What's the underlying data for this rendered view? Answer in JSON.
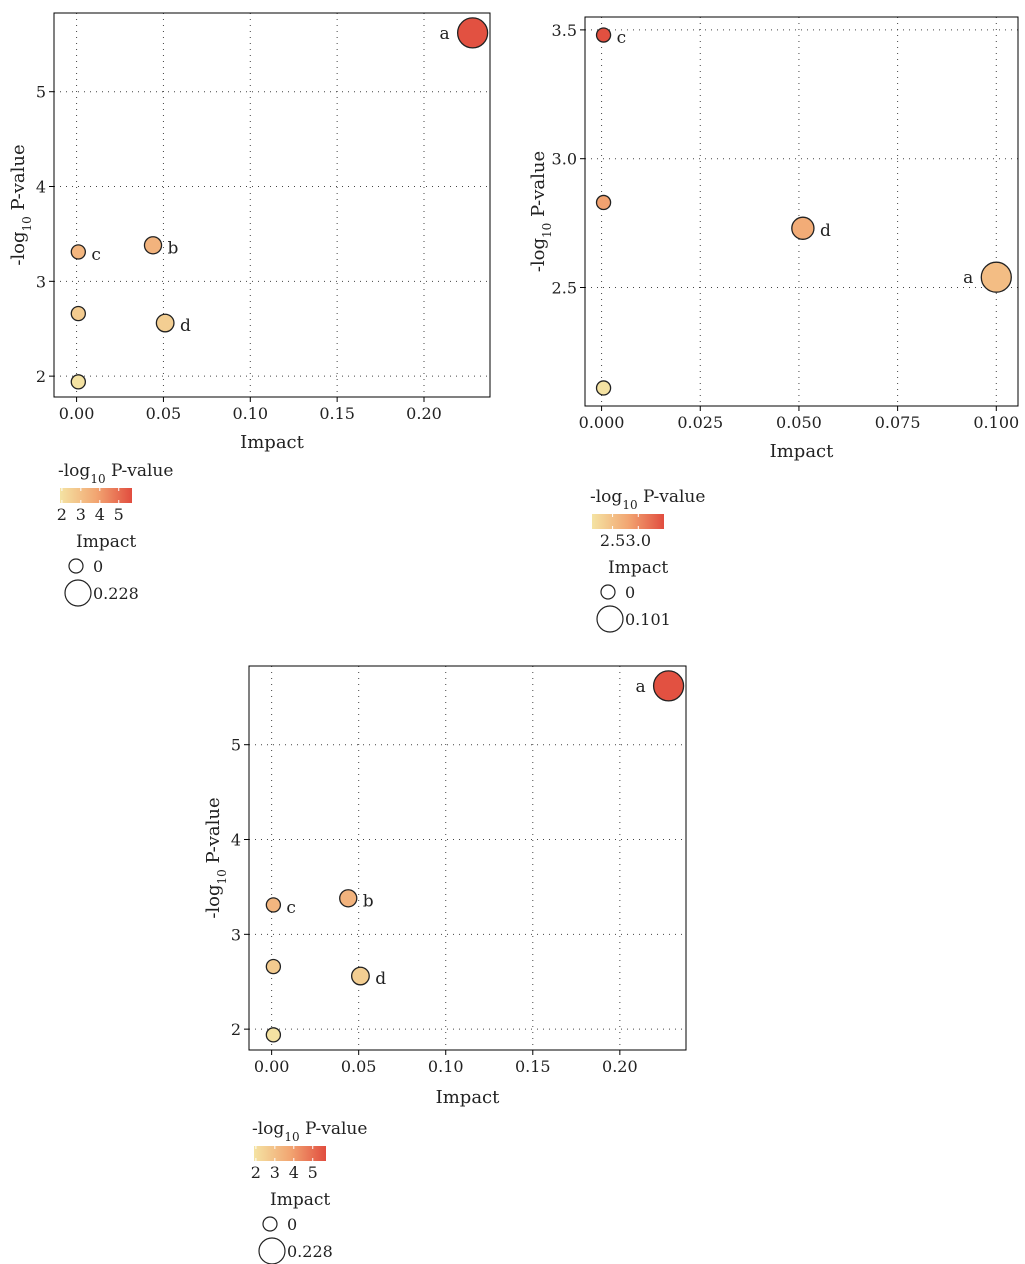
{
  "colors": {
    "low": "#f4e3a3",
    "mid": "#f2a672",
    "high": "#e14d3f"
  },
  "chart_data": [
    {
      "type": "scatter",
      "xlabel": "Impact",
      "ylabel": "-log10 P-value",
      "xlim": [
        -0.013,
        0.238
      ],
      "ylim": [
        1.78,
        5.83
      ],
      "xticks": [
        0.0,
        0.05,
        0.1,
        0.15,
        0.2
      ],
      "xtick_labels": [
        "0.00",
        "0.05",
        "0.10",
        "0.15",
        "0.20"
      ],
      "yticks": [
        2,
        3,
        4,
        5
      ],
      "ytick_labels": [
        "2",
        "3",
        "4",
        "5"
      ],
      "grid": true,
      "points": [
        {
          "x": 0.228,
          "y": 5.62,
          "label": "a"
        },
        {
          "x": 0.044,
          "y": 3.38,
          "label": "b"
        },
        {
          "x": 0.001,
          "y": 3.31,
          "label": "c"
        },
        {
          "x": 0.051,
          "y": 2.56,
          "label": "d"
        },
        {
          "x": 0.001,
          "y": 2.66,
          "label": ""
        },
        {
          "x": 0.001,
          "y": 1.94,
          "label": ""
        }
      ],
      "legend": {
        "color_title": "-log10 P-value",
        "color_range": [
          1.9,
          5.7
        ],
        "color_ticks": [
          "2",
          "3",
          "4",
          "5"
        ],
        "size_title": "Impact",
        "size_values": [
          "0",
          "0.228"
        ]
      }
    },
    {
      "type": "scatter",
      "xlabel": "Impact",
      "ylabel": "-log10 P-value",
      "xlim": [
        -0.0042,
        0.1055
      ],
      "ylim": [
        2.04,
        3.55
      ],
      "xticks": [
        0.0,
        0.025,
        0.05,
        0.075,
        0.1
      ],
      "xtick_labels": [
        "0.000",
        "0.025",
        "0.050",
        "0.075",
        "0.100"
      ],
      "yticks": [
        2.5,
        3.0,
        3.5
      ],
      "ytick_labels": [
        "2.5",
        "3.0",
        "3.5"
      ],
      "grid": true,
      "points": [
        {
          "x": 0.0005,
          "y": 3.48,
          "label": "c"
        },
        {
          "x": 0.0005,
          "y": 2.83,
          "label": ""
        },
        {
          "x": 0.051,
          "y": 2.73,
          "label": "d"
        },
        {
          "x": 0.1,
          "y": 2.54,
          "label": "a"
        },
        {
          "x": 0.0005,
          "y": 2.11,
          "label": ""
        }
      ],
      "legend": {
        "color_title": "-log10 P-value",
        "color_range": [
          2.1,
          3.5
        ],
        "color_ticks": [
          "2.5",
          "3.0"
        ],
        "size_title": "Impact",
        "size_values": [
          "0",
          "0.101"
        ]
      }
    },
    {
      "type": "scatter",
      "xlabel": "Impact",
      "ylabel": "-log10 P-value",
      "xlim": [
        -0.013,
        0.238
      ],
      "ylim": [
        1.78,
        5.83
      ],
      "xticks": [
        0.0,
        0.05,
        0.1,
        0.15,
        0.2
      ],
      "xtick_labels": [
        "0.00",
        "0.05",
        "0.10",
        "0.15",
        "0.20"
      ],
      "yticks": [
        2,
        3,
        4,
        5
      ],
      "ytick_labels": [
        "2",
        "3",
        "4",
        "5"
      ],
      "grid": true,
      "points": [
        {
          "x": 0.228,
          "y": 5.62,
          "label": "a"
        },
        {
          "x": 0.044,
          "y": 3.38,
          "label": "b"
        },
        {
          "x": 0.001,
          "y": 3.31,
          "label": "c"
        },
        {
          "x": 0.051,
          "y": 2.56,
          "label": "d"
        },
        {
          "x": 0.001,
          "y": 2.66,
          "label": ""
        },
        {
          "x": 0.001,
          "y": 1.94,
          "label": ""
        }
      ],
      "legend": {
        "color_title": "-log10 P-value",
        "color_range": [
          1.9,
          5.7
        ],
        "color_ticks": [
          "2",
          "3",
          "4",
          "5"
        ],
        "size_title": "Impact",
        "size_values": [
          "0",
          "0.228"
        ]
      }
    }
  ]
}
